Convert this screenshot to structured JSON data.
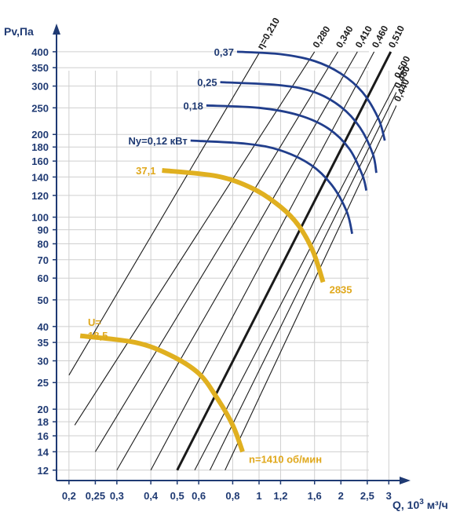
{
  "chart_data": {
    "type": "line",
    "xlabel": "Q, 10³ м³/ч",
    "ylabel": "Pv,Па",
    "x_scale": "log",
    "y_scale": "log",
    "xlim": [
      0.18,
      3.2
    ],
    "ylim": [
      11,
      450
    ],
    "x_ticks": [
      "0,2",
      "0,25",
      "0,3",
      "0,4",
      "0,5",
      "0,6",
      "0,8",
      "1",
      "1,2",
      "1,6",
      "2",
      "2,5",
      "3"
    ],
    "x_tick_values": [
      0.2,
      0.25,
      0.3,
      0.4,
      0.5,
      0.6,
      0.8,
      1,
      1.2,
      1.6,
      2,
      2.5,
      3
    ],
    "y_ticks": [
      "12",
      "14",
      "16",
      "18",
      "20",
      "25",
      "30",
      "35",
      "40",
      "50",
      "60",
      "70",
      "80",
      "90",
      "100",
      "120",
      "140",
      "160",
      "180",
      "200",
      "250",
      "300",
      "350",
      "400"
    ],
    "y_tick_values": [
      12,
      14,
      16,
      18,
      20,
      25,
      30,
      35,
      40,
      50,
      60,
      70,
      80,
      90,
      100,
      120,
      140,
      160,
      180,
      200,
      250,
      300,
      350,
      400
    ],
    "grid": true,
    "efficiency_lines": [
      {
        "label": "η=0,210",
        "points": [
          [
            0.2,
            26.6
          ],
          [
            1.0,
            395
          ]
        ],
        "bold": false
      },
      {
        "label": "0,280",
        "points": [
          [
            0.21,
            17.5
          ],
          [
            1.6,
            400
          ]
        ],
        "bold": false
      },
      {
        "label": "0,340",
        "points": [
          [
            0.25,
            14.0
          ],
          [
            1.95,
            400
          ]
        ],
        "bold": false
      },
      {
        "label": "0,410",
        "points": [
          [
            0.3,
            12.0
          ],
          [
            2.3,
            400
          ]
        ],
        "bold": false
      },
      {
        "label": "0,460",
        "points": [
          [
            0.4,
            12.0
          ],
          [
            2.65,
            400
          ]
        ],
        "bold": false
      },
      {
        "label": "0,510",
        "points": [
          [
            0.5,
            12.0
          ],
          [
            3.05,
            400
          ]
        ],
        "bold": true
      },
      {
        "label": "0,500",
        "points": [
          [
            0.58,
            12.0
          ],
          [
            3.2,
            310
          ]
        ],
        "bold": false
      },
      {
        "label": "0,480",
        "points": [
          [
            0.66,
            12.0
          ],
          [
            3.2,
            285
          ]
        ],
        "bold": false
      },
      {
        "label": "0,440",
        "points": [
          [
            0.75,
            12.0
          ],
          [
            3.2,
            255
          ]
        ],
        "bold": false
      }
    ],
    "power_curves": [
      {
        "label": "0,37",
        "points": [
          [
            0.83,
            400
          ],
          [
            1.2,
            392
          ],
          [
            1.6,
            370
          ],
          [
            2.0,
            333
          ],
          [
            2.4,
            285
          ],
          [
            2.75,
            228
          ],
          [
            2.9,
            190
          ]
        ]
      },
      {
        "label": "0,25",
        "points": [
          [
            0.72,
            310
          ],
          [
            1.2,
            302
          ],
          [
            1.6,
            285
          ],
          [
            2.0,
            252
          ],
          [
            2.35,
            212
          ],
          [
            2.62,
            170
          ],
          [
            2.7,
            145
          ]
        ]
      },
      {
        "label": "0,18",
        "points": [
          [
            0.64,
            255
          ],
          [
            1.0,
            250
          ],
          [
            1.4,
            235
          ],
          [
            1.8,
            210
          ],
          [
            2.15,
            177
          ],
          [
            2.4,
            142
          ],
          [
            2.48,
            125
          ]
        ]
      },
      {
        "label": "Ny=0,12 кВт",
        "points": [
          [
            0.56,
            190
          ],
          [
            0.9,
            185
          ],
          [
            1.2,
            175
          ],
          [
            1.55,
            155
          ],
          [
            1.85,
            131
          ],
          [
            2.1,
            105
          ],
          [
            2.2,
            87
          ]
        ]
      }
    ],
    "speed_curves": [
      {
        "label": "37,1",
        "end_label": "2835",
        "points": [
          [
            0.44,
            148
          ],
          [
            0.7,
            141
          ],
          [
            0.95,
            127
          ],
          [
            1.2,
            109
          ],
          [
            1.4,
            93
          ],
          [
            1.58,
            75
          ],
          [
            1.72,
            58
          ]
        ]
      },
      {
        "label": "U=\n18,5",
        "end_label": "n=1410 об/мин",
        "points": [
          [
            0.22,
            37
          ],
          [
            0.35,
            35
          ],
          [
            0.47,
            31.5
          ],
          [
            0.6,
            27
          ],
          [
            0.7,
            22
          ],
          [
            0.8,
            17.5
          ],
          [
            0.87,
            14
          ]
        ]
      }
    ]
  },
  "labels": {
    "y_axis": "Pv,Па",
    "x_axis_main": "Q, 10",
    "x_axis_sup": "3",
    "x_axis_unit": " м³/ч",
    "u_line1": "U=",
    "u_line2": "18,5"
  },
  "colors": {
    "axis": "#1f3a73",
    "grid": "#cfcfcf",
    "efficiency": "#1a1a1a",
    "power_curve": "#213e8c",
    "speed_curve": "#e0b020",
    "speed_label": "#e0a81c"
  }
}
